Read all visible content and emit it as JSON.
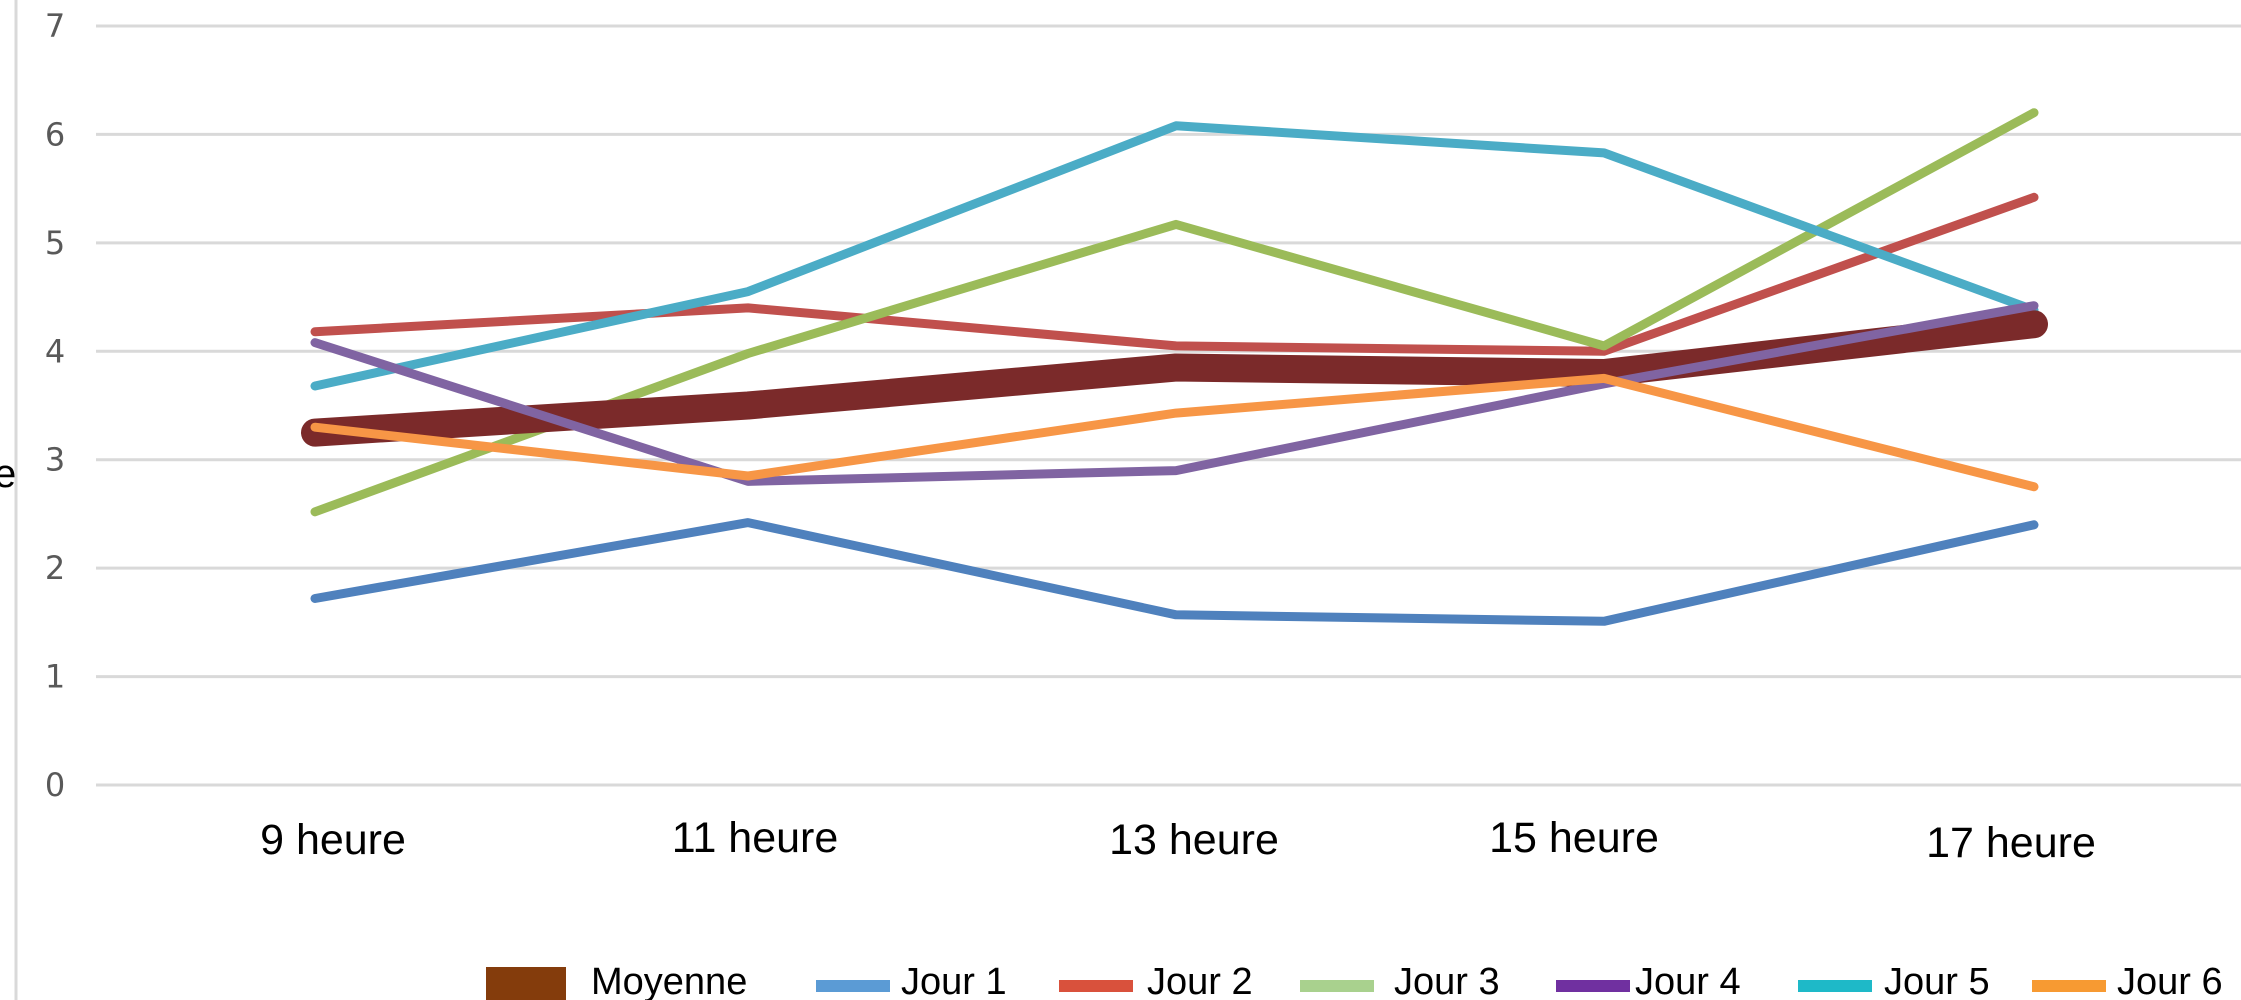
{
  "chart_data": {
    "type": "line",
    "title": "",
    "xlabel": "",
    "ylabel": "e",
    "ylim": [
      0,
      7
    ],
    "yticks": [
      0,
      1,
      2,
      3,
      4,
      5,
      6,
      7
    ],
    "grid": true,
    "legend_position": "bottom",
    "categories": [
      "9 heure",
      "11 heure",
      "13 heure",
      "15 heure",
      "17 heure"
    ],
    "series": [
      {
        "name": "Moyenne",
        "values": [
          3.25,
          3.5,
          3.85,
          3.8,
          4.25
        ],
        "color": "#7B2A2A",
        "legend_color": "#843C0C",
        "width": 28
      },
      {
        "name": "Jour 1",
        "values": [
          1.72,
          2.42,
          1.57,
          1.51,
          2.4
        ],
        "color": "#4F81BD",
        "legend_color": "#5B9BD5",
        "width": 9
      },
      {
        "name": "Jour 2",
        "values": [
          4.18,
          4.4,
          4.05,
          4.0,
          5.42
        ],
        "color": "#C0504D",
        "legend_color": "#D9513C",
        "width": 9
      },
      {
        "name": "Jour 3",
        "values": [
          2.52,
          3.98,
          5.17,
          4.05,
          6.2
        ],
        "color": "#9BBB59",
        "legend_color": "#A9D18E",
        "width": 9
      },
      {
        "name": "Jour 4",
        "values": [
          4.08,
          2.8,
          2.9,
          3.7,
          4.42
        ],
        "color": "#8064A2",
        "legend_color": "#7030A0",
        "width": 9
      },
      {
        "name": "Jour 5",
        "values": [
          3.68,
          4.55,
          6.08,
          5.83,
          4.38
        ],
        "color": "#4BACC6",
        "legend_color": "#1EB9C8",
        "width": 9
      },
      {
        "name": "Jour 6",
        "values": [
          3.3,
          2.85,
          3.43,
          3.75,
          2.75
        ],
        "color": "#F79646",
        "legend_color": "#F79A32",
        "width": 9
      }
    ]
  }
}
